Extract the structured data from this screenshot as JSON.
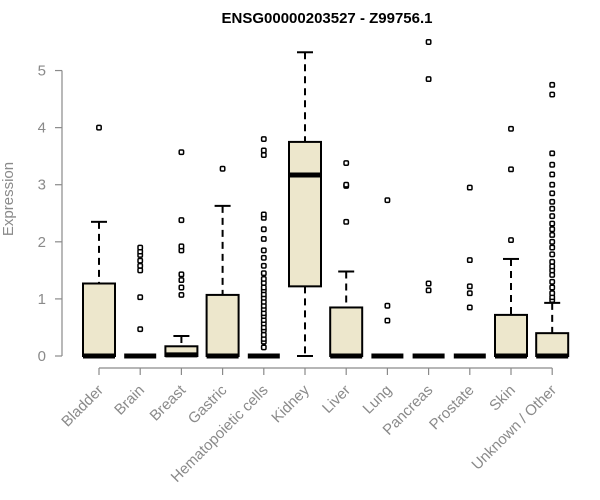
{
  "chart_data": {
    "type": "box",
    "title": "ENSG00000203527 - Z99756.1",
    "ylabel": "Expression",
    "xlabel": "",
    "ylim": [
      0,
      5.5
    ],
    "yticks": [
      0,
      1,
      2,
      3,
      4,
      5
    ],
    "categories": [
      "Bladder",
      "Brain",
      "Breast",
      "Gastric",
      "Hematopoietic cells",
      "Kidney",
      "Liver",
      "Lung",
      "Pancreas",
      "Prostate",
      "Skin",
      "Unknown / Other"
    ],
    "boxes": [
      {
        "min": 0,
        "q1": 0,
        "median": 0,
        "q3": 1.27,
        "max": 2.35,
        "outliers": [
          4.0
        ]
      },
      {
        "min": 0,
        "q1": 0,
        "median": 0,
        "q3": 0,
        "max": 0,
        "outliers": [
          0.47,
          1.03,
          1.5,
          1.58,
          1.67,
          1.77,
          1.83,
          1.9
        ]
      },
      {
        "min": 0,
        "q1": 0,
        "median": 0.02,
        "q3": 0.17,
        "max": 0.35,
        "outliers": [
          1.07,
          1.2,
          1.33,
          1.43,
          1.85,
          1.92,
          2.38,
          3.57
        ]
      },
      {
        "min": 0,
        "q1": 0,
        "median": 0,
        "q3": 1.07,
        "max": 2.63,
        "outliers": [
          3.28
        ]
      },
      {
        "min": 0,
        "q1": 0,
        "median": 0,
        "q3": 0,
        "max": 0,
        "outliers": [
          0.15,
          0.25,
          0.3,
          0.37,
          0.45,
          0.5,
          0.57,
          0.63,
          0.7,
          0.75,
          0.82,
          0.88,
          0.95,
          1.02,
          1.08,
          1.15,
          1.2,
          1.28,
          1.35,
          1.45,
          1.58,
          1.72,
          1.85,
          2.05,
          2.22,
          2.42,
          2.48,
          3.52,
          3.6,
          3.8
        ]
      },
      {
        "min": 0,
        "q1": 1.22,
        "median": 3.17,
        "q3": 3.75,
        "max": 5.32,
        "outliers": []
      },
      {
        "min": 0,
        "q1": 0,
        "median": 0,
        "q3": 0.85,
        "max": 1.48,
        "outliers": [
          2.35,
          2.98,
          3.0,
          3.38
        ]
      },
      {
        "min": 0,
        "q1": 0,
        "median": 0,
        "q3": 0,
        "max": 0,
        "outliers": [
          0.62,
          0.88,
          2.73
        ]
      },
      {
        "min": 0,
        "q1": 0,
        "median": 0,
        "q3": 0,
        "max": 0,
        "outliers": [
          1.15,
          1.27,
          4.85,
          5.5
        ]
      },
      {
        "min": 0,
        "q1": 0,
        "median": 0,
        "q3": 0,
        "max": 0,
        "outliers": [
          0.85,
          1.1,
          1.22,
          1.68,
          2.95
        ]
      },
      {
        "min": 0,
        "q1": 0,
        "median": 0,
        "q3": 0.72,
        "max": 1.7,
        "outliers": [
          2.03,
          3.27,
          3.98
        ]
      },
      {
        "min": 0,
        "q1": 0,
        "median": 0,
        "q3": 0.4,
        "max": 0.93,
        "outliers": [
          0.98,
          1.03,
          1.1,
          1.2,
          1.3,
          1.42,
          1.5,
          1.57,
          1.65,
          1.78,
          1.9,
          2.0,
          2.12,
          2.22,
          2.32,
          2.45,
          2.58,
          2.7,
          2.85,
          3.0,
          3.18,
          3.35,
          3.55,
          4.58,
          4.75
        ]
      }
    ],
    "colors": {
      "box_fill": "#ede7cc",
      "box_stroke": "#000000",
      "axis": "#8a8a8a"
    },
    "grid": false,
    "legend": "none"
  }
}
